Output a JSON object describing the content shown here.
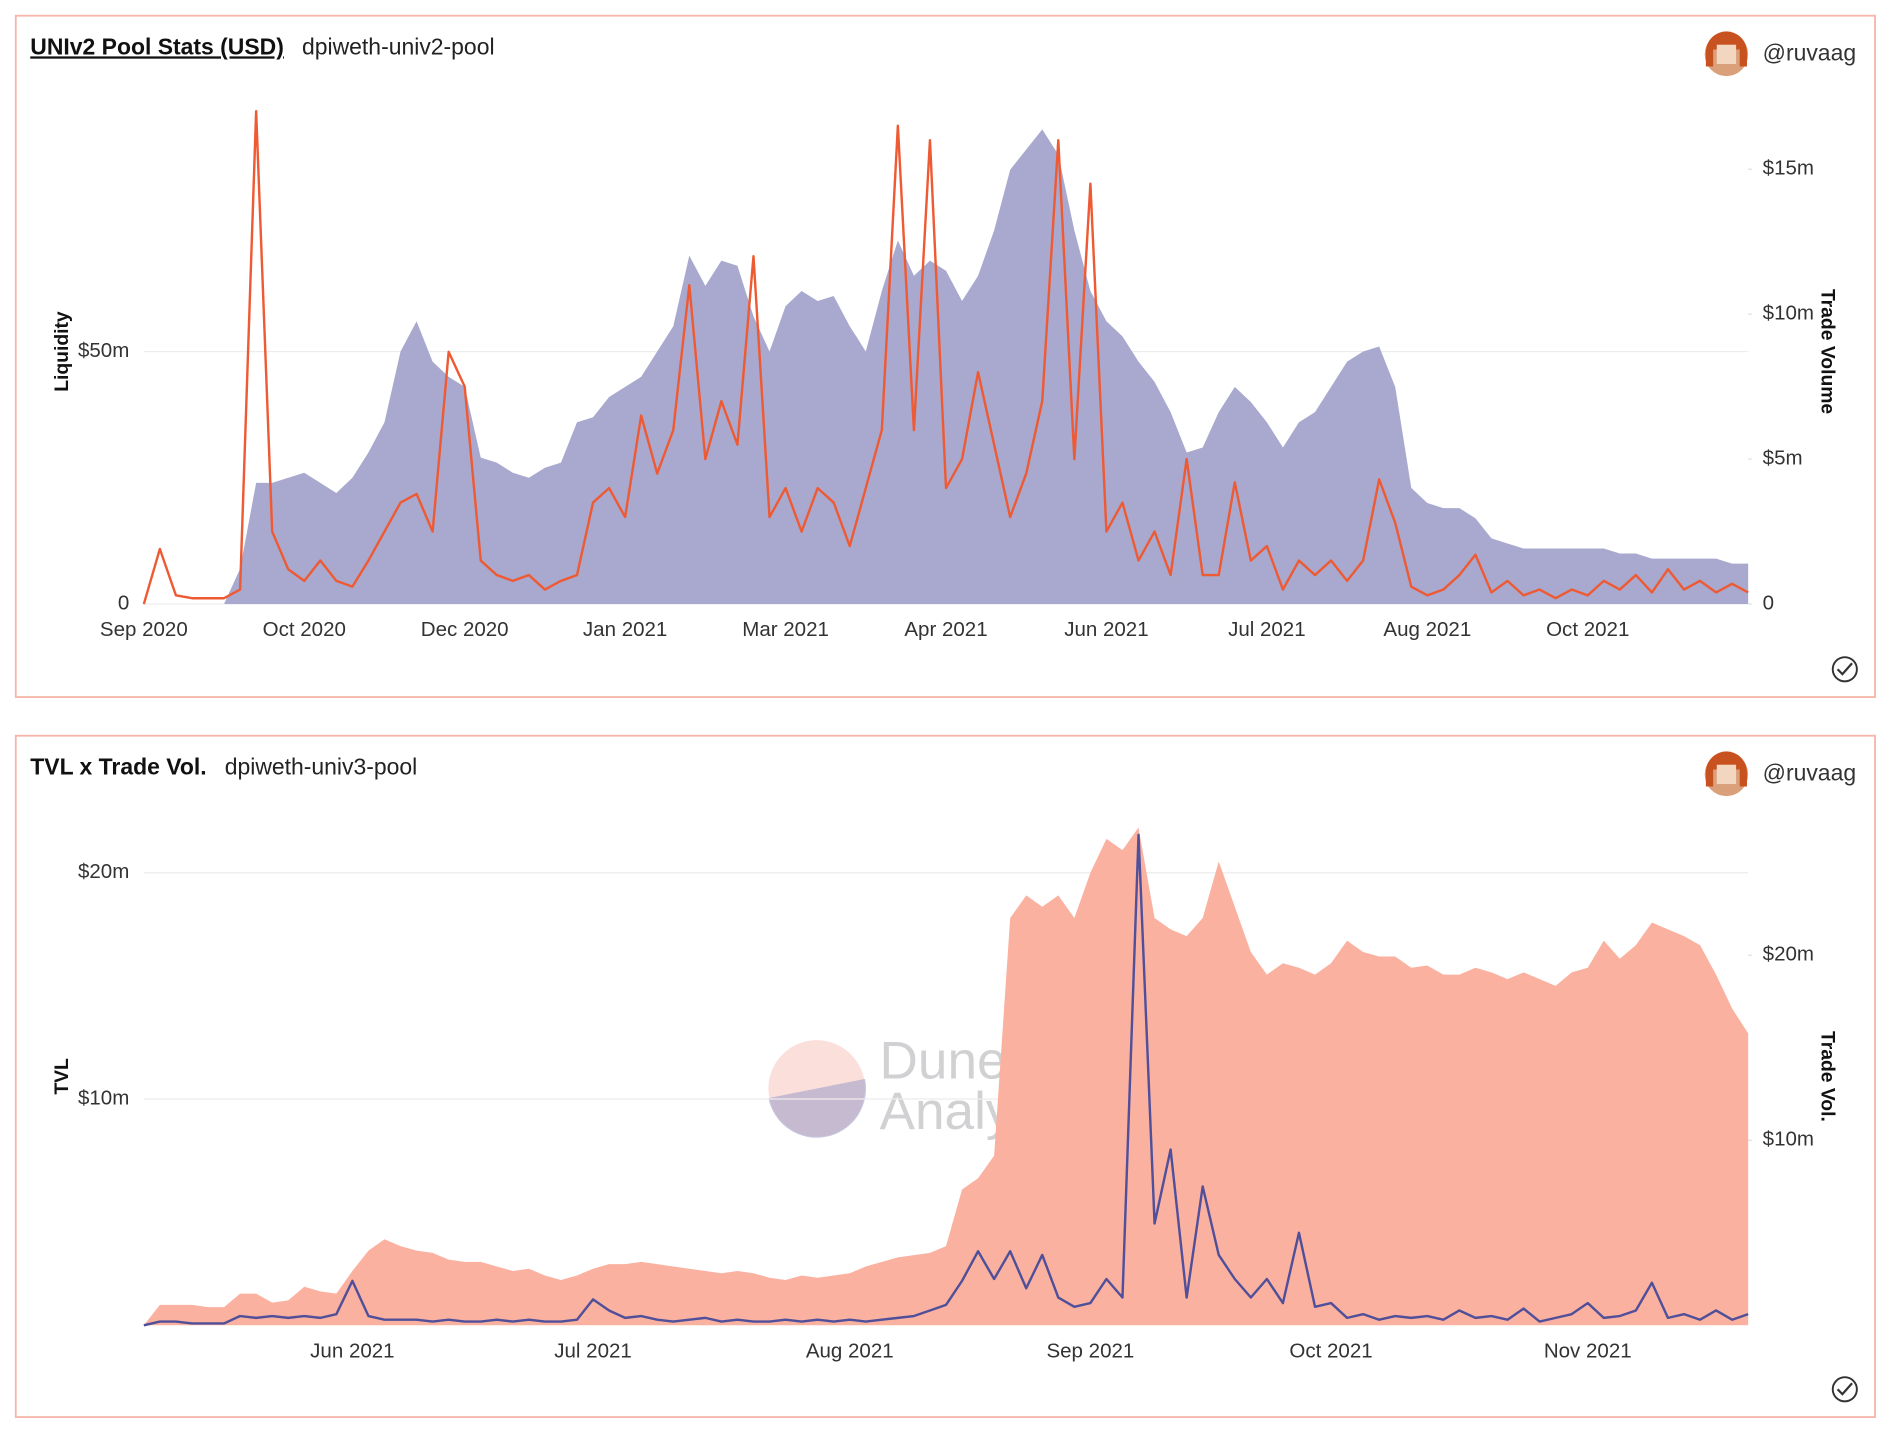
{
  "author": "@ruvaag",
  "watermark": [
    "Dune",
    "Analytics"
  ],
  "chart_data": [
    {
      "type": "combo",
      "title": "UNIv2 Pool Stats (USD)",
      "subtitle": "dpiweth-univ2-pool",
      "ylabel": "Liquidity",
      "y2label": "Trade Volume",
      "categories": [
        "Sep 2020",
        null,
        null,
        null,
        null,
        null,
        null,
        null,
        null,
        null,
        "Oct 2020",
        null,
        null,
        null,
        null,
        null,
        null,
        null,
        null,
        null,
        "Dec 2020",
        null,
        null,
        null,
        null,
        null,
        null,
        null,
        null,
        null,
        "Jan 2021",
        null,
        null,
        null,
        null,
        null,
        null,
        null,
        null,
        null,
        "Mar 2021",
        null,
        null,
        null,
        null,
        null,
        null,
        null,
        null,
        null,
        "Apr 2021",
        null,
        null,
        null,
        null,
        null,
        null,
        null,
        null,
        null,
        "Jun 2021",
        null,
        null,
        null,
        null,
        null,
        null,
        null,
        null,
        null,
        "Jul 2021",
        null,
        null,
        null,
        null,
        null,
        null,
        null,
        null,
        null,
        "Aug 2021",
        null,
        null,
        null,
        null,
        null,
        null,
        null,
        null,
        null,
        "Oct 2021",
        null,
        null,
        null,
        null,
        null,
        null,
        null,
        null,
        null,
        null
      ],
      "series": [
        {
          "type": "area",
          "color": "#a9a9cf",
          "values": [
            0,
            0,
            0,
            0,
            0,
            0,
            7,
            24,
            24,
            25,
            26,
            24,
            22,
            25,
            30,
            36,
            50,
            56,
            48,
            45,
            43,
            29,
            28,
            26,
            25,
            27,
            28,
            36,
            37,
            41,
            43,
            45,
            50,
            55,
            69,
            63,
            68,
            67,
            57,
            50,
            59,
            62,
            60,
            61,
            55,
            50,
            62,
            72,
            65,
            68,
            66,
            60,
            65,
            74,
            86,
            90,
            94,
            89,
            74,
            62,
            56,
            53,
            48,
            44,
            38,
            30,
            31,
            38,
            43,
            40,
            36,
            31,
            36,
            38,
            43,
            48,
            50,
            51,
            43,
            23,
            20,
            19,
            19,
            17,
            13,
            12,
            11,
            11,
            11,
            11,
            11,
            11,
            10,
            10,
            9,
            9,
            9,
            9,
            9,
            8,
            8
          ]
        },
        {
          "type": "line",
          "color": "#ee5a33",
          "axis": "y2",
          "values": [
            0,
            1.9,
            0.3,
            0.2,
            0.2,
            0.2,
            0.5,
            17,
            2.5,
            1.2,
            0.8,
            1.5,
            0.8,
            0.6,
            1.5,
            2.5,
            3.5,
            3.8,
            2.5,
            8.7,
            7.5,
            1.5,
            1.0,
            0.8,
            1.0,
            0.5,
            0.8,
            1.0,
            3.5,
            4.0,
            3.0,
            6.5,
            4.5,
            6.0,
            11.0,
            5.0,
            7.0,
            5.5,
            12.0,
            3.0,
            4.0,
            2.5,
            4.0,
            3.5,
            2.0,
            4.0,
            6.0,
            16.5,
            6.0,
            16.0,
            4.0,
            5.0,
            8.0,
            5.5,
            3.0,
            4.5,
            7.0,
            16.0,
            5.0,
            14.5,
            2.5,
            3.5,
            1.5,
            2.5,
            1.0,
            5.0,
            1.0,
            1.0,
            4.2,
            1.5,
            2.0,
            0.5,
            1.5,
            1.0,
            1.5,
            0.8,
            1.5,
            4.3,
            2.8,
            0.6,
            0.3,
            0.5,
            1.0,
            1.7,
            0.4,
            0.8,
            0.3,
            0.5,
            0.2,
            0.5,
            0.3,
            0.8,
            0.5,
            1.0,
            0.4,
            1.2,
            0.5,
            0.8,
            0.4,
            0.7,
            0.4
          ]
        }
      ],
      "ylim": [
        0,
        100
      ],
      "yticks": [
        0,
        {
          "value": 50,
          "label": "$50m"
        }
      ],
      "y2lim": [
        0,
        17.42
      ],
      "y2ticks": [
        0,
        {
          "value": 5,
          "label": "$5m"
        },
        {
          "value": 10,
          "label": "$10m"
        },
        {
          "value": 15,
          "label": "$15m"
        }
      ],
      "grid": true
    },
    {
      "type": "combo",
      "title": "TVL x Trade Vol.",
      "subtitle": "dpiweth-univ3-pool",
      "ylabel": "TVL",
      "y2label": "Trade Vol.",
      "categories": [
        null,
        null,
        null,
        null,
        null,
        null,
        null,
        null,
        null,
        null,
        null,
        null,
        null,
        "Jun 2021",
        null,
        null,
        null,
        null,
        null,
        null,
        null,
        null,
        null,
        null,
        null,
        null,
        null,
        null,
        "Jul 2021",
        null,
        null,
        null,
        null,
        null,
        null,
        null,
        null,
        null,
        null,
        null,
        null,
        null,
        null,
        null,
        "Aug 2021",
        null,
        null,
        null,
        null,
        null,
        null,
        null,
        null,
        null,
        null,
        null,
        null,
        null,
        null,
        "Sep 2021",
        null,
        null,
        null,
        null,
        null,
        null,
        null,
        null,
        null,
        null,
        null,
        null,
        null,
        null,
        "Oct 2021",
        null,
        null,
        null,
        null,
        null,
        null,
        null,
        null,
        null,
        null,
        null,
        null,
        null,
        null,
        null,
        "Nov 2021",
        null,
        null,
        null,
        null,
        null,
        null,
        null,
        null,
        null,
        null
      ],
      "series": [
        {
          "type": "area",
          "color": "#fbb1a0",
          "values": [
            0,
            0.9,
            0.9,
            0.9,
            0.8,
            0.8,
            1.4,
            1.4,
            1.0,
            1.1,
            1.7,
            1.5,
            1.4,
            2.4,
            3.3,
            3.8,
            3.5,
            3.3,
            3.2,
            2.9,
            2.8,
            2.8,
            2.6,
            2.4,
            2.5,
            2.2,
            2.0,
            2.2,
            2.5,
            2.7,
            2.7,
            2.8,
            2.7,
            2.6,
            2.5,
            2.4,
            2.3,
            2.4,
            2.3,
            2.1,
            2.0,
            2.2,
            2.1,
            2.2,
            2.3,
            2.6,
            2.8,
            3.0,
            3.1,
            3.2,
            3.5,
            6.0,
            6.5,
            7.5,
            18.0,
            19.0,
            18.5,
            19.0,
            18.0,
            20.0,
            21.5,
            21.0,
            22.0,
            18.0,
            17.5,
            17.2,
            18.0,
            20.5,
            18.5,
            16.5,
            15.5,
            16.0,
            15.8,
            15.5,
            16.0,
            17.0,
            16.5,
            16.3,
            16.3,
            15.8,
            15.9,
            15.5,
            15.5,
            15.8,
            15.6,
            15.3,
            15.6,
            15.3,
            15.0,
            15.6,
            15.8,
            17.0,
            16.2,
            16.8,
            17.8,
            17.5,
            17.2,
            16.8,
            15.5,
            14.0,
            12.9
          ]
        },
        {
          "type": "line",
          "color": "#4f4f9a",
          "axis": "y2",
          "values": [
            0,
            0.2,
            0.2,
            0.1,
            0.1,
            0.1,
            0.5,
            0.4,
            0.5,
            0.4,
            0.5,
            0.4,
            0.6,
            2.4,
            0.5,
            0.3,
            0.3,
            0.3,
            0.2,
            0.3,
            0.2,
            0.2,
            0.3,
            0.2,
            0.3,
            0.2,
            0.2,
            0.3,
            1.4,
            0.8,
            0.4,
            0.5,
            0.3,
            0.2,
            0.3,
            0.4,
            0.2,
            0.3,
            0.2,
            0.2,
            0.3,
            0.2,
            0.3,
            0.2,
            0.3,
            0.2,
            0.3,
            0.4,
            0.5,
            0.8,
            1.1,
            2.4,
            4.0,
            2.5,
            4.0,
            2.0,
            3.8,
            1.5,
            1.0,
            1.2,
            2.5,
            1.5,
            26.5,
            5.5,
            9.5,
            1.5,
            7.5,
            3.8,
            2.5,
            1.5,
            2.5,
            1.2,
            5.0,
            1.0,
            1.2,
            0.4,
            0.6,
            0.3,
            0.5,
            0.4,
            0.5,
            0.3,
            0.8,
            0.4,
            0.5,
            0.3,
            0.9,
            0.2,
            0.4,
            0.6,
            1.2,
            0.4,
            0.5,
            0.8,
            2.3,
            0.4,
            0.6,
            0.3,
            0.8,
            0.3,
            0.6
          ]
        }
      ],
      "ylim": [
        0,
        22
      ],
      "yticks": [
        {
          "value": 10,
          "label": "$10m"
        },
        {
          "value": 20,
          "label": "$20m"
        }
      ],
      "y2lim": [
        0,
        26.9
      ],
      "y2ticks": [
        {
          "value": 10,
          "label": "$10m"
        },
        {
          "value": 20,
          "label": "$20m"
        }
      ],
      "grid": true
    }
  ]
}
